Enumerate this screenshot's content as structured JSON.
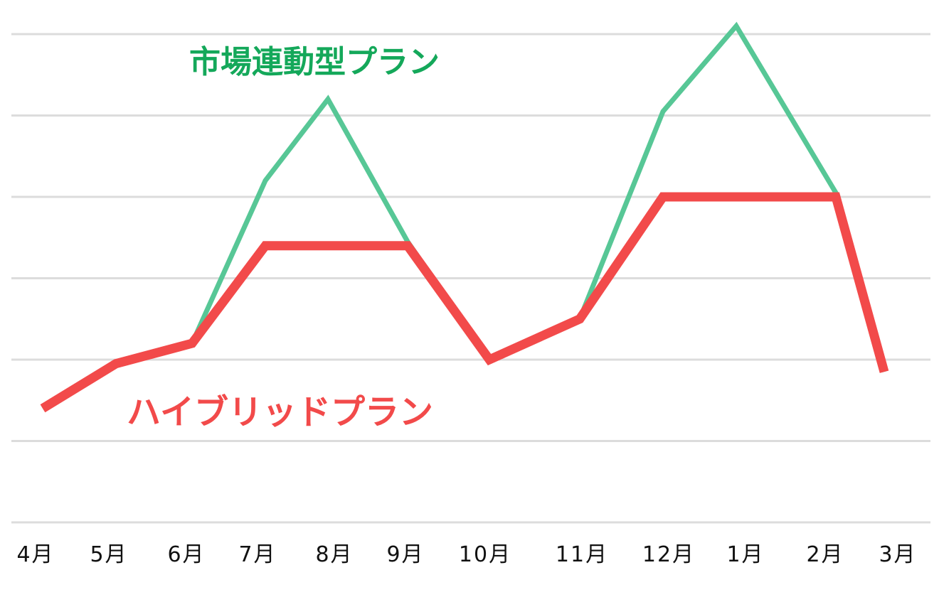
{
  "chart_data": {
    "type": "line",
    "title": "",
    "xlabel": "",
    "ylabel": "",
    "categories": [
      "4月",
      "5月",
      "6月",
      "7月",
      "8月",
      "9月",
      "10月",
      "11月",
      "12月",
      "1月",
      "2月",
      "3月"
    ],
    "ylim": [
      0,
      6
    ],
    "grid": true,
    "series": [
      {
        "name": "市場連動型プラン",
        "color": "#57c796",
        "values": [
          1.4,
          1.95,
          2.2,
          4.2,
          5.2,
          3.45,
          2.0,
          2.5,
          5.05,
          6.1,
          4.05,
          1.85
        ]
      },
      {
        "name": "ハイブリッドプラン",
        "color": "#f24a4a",
        "values": [
          1.4,
          1.95,
          2.2,
          3.4,
          3.4,
          3.4,
          2.0,
          2.5,
          4.0,
          4.0,
          4.0,
          1.85
        ]
      }
    ]
  }
}
